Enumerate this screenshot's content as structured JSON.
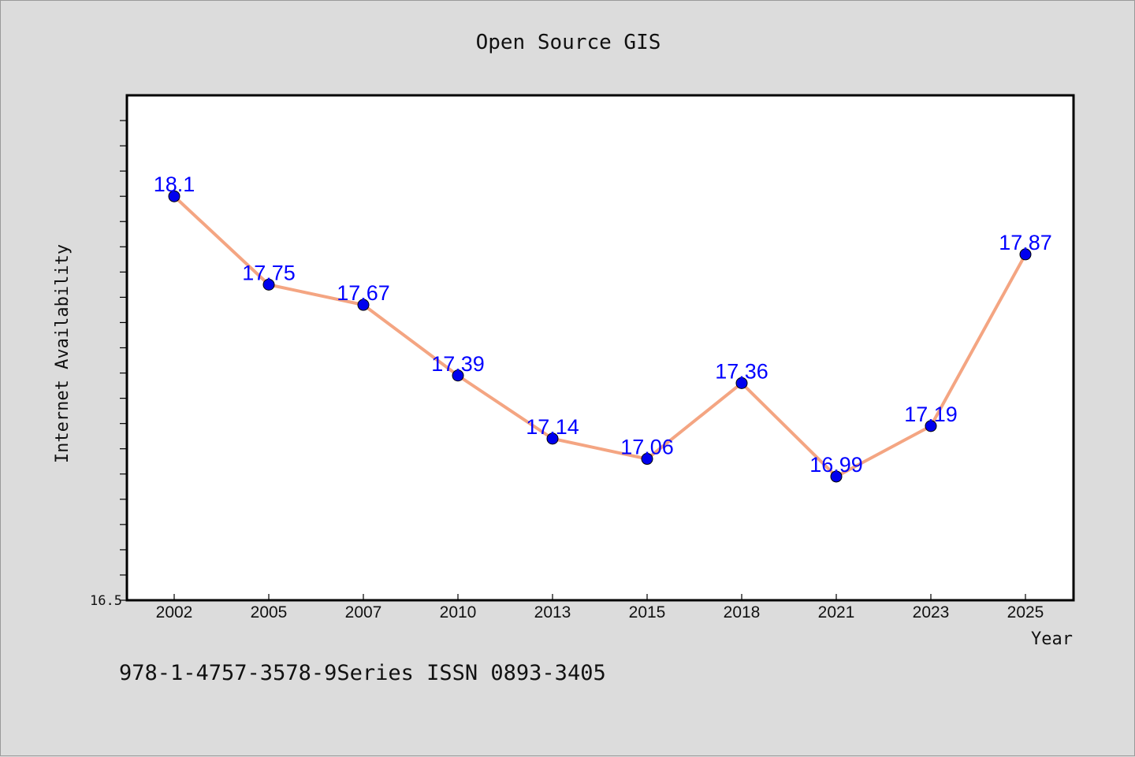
{
  "footnote": "978-1-4757-3578-9Series ISSN 0893-3405",
  "chart_data": {
    "type": "line",
    "title": "Open Source GIS",
    "xlabel": "Year",
    "ylabel": "Internet Availability",
    "categories": [
      "2002",
      "2005",
      "2007",
      "2010",
      "2013",
      "2015",
      "2018",
      "2021",
      "2023",
      "2025"
    ],
    "series": [
      {
        "values": [
          18.1,
          17.75,
          17.67,
          17.39,
          17.14,
          17.06,
          17.36,
          16.99,
          17.19,
          17.87
        ],
        "data_labels": [
          "18.1",
          "17.75",
          "17.67",
          "17.39",
          "17.14",
          "17.06",
          "17.36",
          "16.99",
          "17.19",
          "17.87"
        ]
      }
    ],
    "ylim": [
      16.5,
      18.5
    ],
    "yticks_labeled": [
      "16.5"
    ],
    "line_color": "#f4a582",
    "marker_color": "#0000ee",
    "label_color": "#0000ff",
    "grid": false,
    "legend": "none"
  }
}
